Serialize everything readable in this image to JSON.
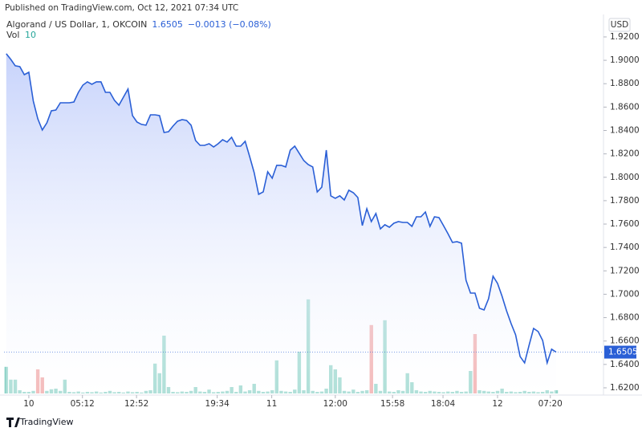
{
  "header": "Published on TradingView.com, Oct 12, 2021 07:34 UTC",
  "footer": "TradingView",
  "chart_data": {
    "type": "line",
    "legend_title": "Algorand / US Dollar, 1, OKCOIN",
    "legend_change": "−0.0013 (−0.08%)",
    "currency": "USD",
    "series": [
      {
        "name": "Algorand / US Dollar",
        "color": "#2a5fd6",
        "values": [
          1.9056,
          1.9008,
          1.8953,
          1.8946,
          1.8877,
          1.8898,
          1.8651,
          1.85,
          1.8404,
          1.8465,
          1.8568,
          1.8575,
          1.8637,
          1.8637,
          1.8637,
          1.8644,
          1.8726,
          1.8788,
          1.8816,
          1.8795,
          1.8816,
          1.8816,
          1.8726,
          1.8726,
          1.8658,
          1.8616,
          1.8685,
          1.8754,
          1.8527,
          1.8472,
          1.8452,
          1.8445,
          1.8534,
          1.8534,
          1.8527,
          1.8383,
          1.839,
          1.8438,
          1.8479,
          1.8493,
          1.8486,
          1.8445,
          1.8314,
          1.8273,
          1.8273,
          1.8287,
          1.8259,
          1.8287,
          1.8321,
          1.8301,
          1.8342,
          1.8266,
          1.8266,
          1.8308,
          1.8177,
          1.804,
          1.7854,
          1.7875,
          1.8047,
          1.7992,
          1.8102,
          1.8102,
          1.8088,
          1.8232,
          1.8266,
          1.8205,
          1.8143,
          1.8108,
          1.8088,
          1.7875,
          1.7916,
          1.8232,
          1.7841,
          1.782,
          1.7841,
          1.7806,
          1.7889,
          1.7868,
          1.7827,
          1.7587,
          1.7731,
          1.7621,
          1.769,
          1.7559,
          1.7594,
          1.7573,
          1.7607,
          1.7621,
          1.7614,
          1.7614,
          1.758,
          1.7662,
          1.7662,
          1.7703,
          1.758,
          1.7662,
          1.7655,
          1.7587,
          1.7518,
          1.7443,
          1.7449,
          1.7436,
          1.712,
          1.701,
          1.701,
          1.688,
          1.6866,
          1.6962,
          1.7154,
          1.7092,
          1.6983,
          1.6859,
          1.6749,
          1.6653,
          1.6468,
          1.6413,
          1.6564,
          1.6708,
          1.6681,
          1.6605,
          1.6413,
          1.653,
          1.6505
        ]
      }
    ],
    "volume": {
      "name": "Vol",
      "value_color": "#26a69a",
      "values": [
        83,
        43,
        43,
        10,
        5,
        5,
        8,
        75,
        50,
        8,
        13,
        15,
        8,
        43,
        5,
        4,
        6,
        3,
        5,
        4,
        6,
        3,
        5,
        8,
        4,
        5,
        3,
        6,
        4,
        5,
        3,
        8,
        10,
        93,
        63,
        180,
        20,
        5,
        4,
        6,
        5,
        8,
        20,
        6,
        5,
        12,
        4,
        5,
        6,
        8,
        20,
        5,
        25,
        6,
        10,
        30,
        8,
        5,
        6,
        10,
        103,
        8,
        6,
        5,
        12,
        130,
        10,
        293,
        8,
        5,
        6,
        15,
        88,
        75,
        50,
        8,
        6,
        12,
        5,
        8,
        10,
        213,
        30,
        8,
        228,
        6,
        5,
        10,
        8,
        63,
        35,
        10,
        6,
        5,
        8,
        6,
        5,
        4,
        6,
        5,
        8,
        5,
        6,
        70,
        185,
        10,
        8,
        6,
        5,
        8,
        15,
        5,
        6,
        4,
        5,
        8,
        5,
        6,
        4,
        5,
        10,
        6,
        10
      ],
      "colors": [
        "#8fd3c8",
        "#8fd3c8",
        "#8fd3c8",
        "#8fd3c8",
        "#8fd3c8",
        "#8fd3c8",
        "#8fd3c8",
        "#f0a0a0",
        "#f0a0a0",
        "#8fd3c8",
        "#8fd3c8",
        "#8fd3c8",
        "#8fd3c8",
        "#8fd3c8",
        "#8fd3c8",
        "#8fd3c8",
        "#8fd3c8",
        "#8fd3c8",
        "#8fd3c8",
        "#8fd3c8",
        "#8fd3c8",
        "#8fd3c8",
        "#8fd3c8",
        "#8fd3c8",
        "#8fd3c8",
        "#8fd3c8",
        "#8fd3c8",
        "#8fd3c8",
        "#8fd3c8",
        "#8fd3c8",
        "#8fd3c8",
        "#8fd3c8",
        "#8fd3c8",
        "#8fd3c8",
        "#8fd3c8",
        "#8fd3c8",
        "#8fd3c8",
        "#8fd3c8",
        "#8fd3c8",
        "#8fd3c8",
        "#8fd3c8",
        "#8fd3c8",
        "#8fd3c8",
        "#8fd3c8",
        "#8fd3c8",
        "#8fd3c8",
        "#8fd3c8",
        "#8fd3c8",
        "#8fd3c8",
        "#8fd3c8",
        "#8fd3c8",
        "#8fd3c8",
        "#8fd3c8",
        "#8fd3c8",
        "#8fd3c8",
        "#8fd3c8",
        "#8fd3c8",
        "#8fd3c8",
        "#8fd3c8",
        "#8fd3c8",
        "#8fd3c8",
        "#8fd3c8",
        "#8fd3c8",
        "#8fd3c8",
        "#8fd3c8",
        "#8fd3c8",
        "#8fd3c8",
        "#8fd3c8",
        "#8fd3c8",
        "#8fd3c8",
        "#8fd3c8",
        "#8fd3c8",
        "#8fd3c8",
        "#8fd3c8",
        "#8fd3c8",
        "#8fd3c8",
        "#8fd3c8",
        "#8fd3c8",
        "#8fd3c8",
        "#8fd3c8",
        "#8fd3c8",
        "#f0a0a0",
        "#8fd3c8",
        "#8fd3c8",
        "#8fd3c8",
        "#8fd3c8",
        "#8fd3c8",
        "#8fd3c8",
        "#8fd3c8",
        "#8fd3c8",
        "#8fd3c8",
        "#8fd3c8",
        "#8fd3c8",
        "#8fd3c8",
        "#8fd3c8",
        "#8fd3c8",
        "#8fd3c8",
        "#8fd3c8",
        "#8fd3c8",
        "#8fd3c8",
        "#8fd3c8",
        "#8fd3c8",
        "#8fd3c8",
        "#8fd3c8",
        "#f0a0a0",
        "#8fd3c8",
        "#8fd3c8",
        "#8fd3c8",
        "#8fd3c8",
        "#8fd3c8",
        "#8fd3c8",
        "#8fd3c8",
        "#8fd3c8",
        "#8fd3c8",
        "#8fd3c8",
        "#8fd3c8",
        "#8fd3c8",
        "#8fd3c8",
        "#8fd3c8",
        "#8fd3c8",
        "#8fd3c8",
        "#8fd3c8",
        "#8fd3c8"
      ],
      "ylim": [
        0,
        400
      ]
    },
    "xlim": [
      -0.5,
      132.5
    ],
    "xticks": [
      {
        "value": 5,
        "label": "10"
      },
      {
        "value": 16.9,
        "label": "05:12"
      },
      {
        "value": 28.9,
        "label": "12:52"
      },
      {
        "value": 46.8,
        "label": "19:34"
      },
      {
        "value": 58.9,
        "label": "11"
      },
      {
        "value": 73,
        "label": "12:00"
      },
      {
        "value": 85.7,
        "label": "15:58"
      },
      {
        "value": 96.9,
        "label": "18:04"
      },
      {
        "value": 109,
        "label": "12"
      },
      {
        "value": 120.7,
        "label": "07:20"
      }
    ],
    "ylim": [
      1.6138,
      1.9392
    ],
    "yticks": [
      {
        "value": 1.62,
        "label": "1.6200"
      },
      {
        "value": 1.64,
        "label": "1.6400"
      },
      {
        "value": 1.66,
        "label": "1.6600"
      },
      {
        "value": 1.68,
        "label": "1.6800"
      },
      {
        "value": 1.7,
        "label": "1.7000"
      },
      {
        "value": 1.72,
        "label": "1.7200"
      },
      {
        "value": 1.74,
        "label": "1.7400"
      },
      {
        "value": 1.76,
        "label": "1.7600"
      },
      {
        "value": 1.78,
        "label": "1.7800"
      },
      {
        "value": 1.8,
        "label": "1.8000"
      },
      {
        "value": 1.82,
        "label": "1.8200"
      },
      {
        "value": 1.84,
        "label": "1.8400"
      },
      {
        "value": 1.86,
        "label": "1.8600"
      },
      {
        "value": 1.88,
        "label": "1.8800"
      },
      {
        "value": 1.9,
        "label": "1.9000"
      },
      {
        "value": 1.92,
        "label": "1.9200"
      }
    ],
    "grid": false
  }
}
